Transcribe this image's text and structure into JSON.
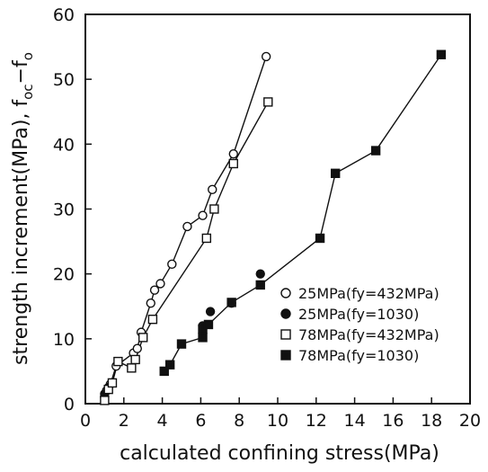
{
  "chart_data": {
    "type": "scatter",
    "title": "",
    "xlabel": "calculated confining stress(MPa)",
    "ylabel": "strength increment(MPa), f",
    "ylabel_tail_1": "oc",
    "ylabel_tail_2": "−f",
    "ylabel_tail_3": "o",
    "xlim": [
      0,
      20
    ],
    "ylim": [
      0,
      60
    ],
    "xticks": [
      "0",
      "2",
      "4",
      "6",
      "8",
      "10",
      "12",
      "14",
      "16",
      "18",
      "20"
    ],
    "yticks": [
      "0",
      "10",
      "20",
      "30",
      "40",
      "50",
      "60"
    ],
    "grid": false,
    "legend_position": "lower-right",
    "series": [
      {
        "name": "25MPa(fy=432MPa)",
        "marker": "circle-open",
        "points": [
          [
            1.0,
            1.0
          ],
          [
            1.1,
            2.0
          ],
          [
            1.3,
            3.0
          ],
          [
            1.6,
            5.8
          ],
          [
            2.5,
            7.8
          ],
          [
            2.7,
            8.5
          ],
          [
            2.9,
            11.0
          ],
          [
            3.4,
            15.5
          ],
          [
            3.6,
            17.5
          ],
          [
            3.9,
            18.5
          ],
          [
            4.5,
            21.5
          ],
          [
            5.3,
            27.3
          ],
          [
            6.1,
            29.0
          ],
          [
            6.6,
            33.0
          ],
          [
            7.7,
            38.5
          ],
          [
            9.4,
            53.5
          ]
        ]
      },
      {
        "name": "25MPa(fy=1030)",
        "marker": "circle-filled",
        "points": [
          [
            1.0,
            1.5
          ],
          [
            1.2,
            2.5
          ],
          [
            6.1,
            12.0
          ],
          [
            6.5,
            14.2
          ],
          [
            7.6,
            15.5
          ],
          [
            9.1,
            20.0
          ]
        ]
      },
      {
        "name": "78MPa(fy=432MPa)",
        "marker": "square-open",
        "points": [
          [
            1.0,
            0.5
          ],
          [
            1.2,
            2.2
          ],
          [
            1.4,
            3.2
          ],
          [
            1.7,
            6.5
          ],
          [
            2.4,
            5.5
          ],
          [
            2.6,
            6.8
          ],
          [
            3.0,
            10.2
          ],
          [
            3.5,
            13.0
          ],
          [
            6.3,
            25.5
          ],
          [
            6.7,
            30.0
          ],
          [
            7.7,
            37.0
          ],
          [
            9.5,
            46.5
          ]
        ]
      },
      {
        "name": "78MPa(fy=1030)",
        "marker": "square-filled",
        "points": [
          [
            4.1,
            5.0
          ],
          [
            4.4,
            6.0
          ],
          [
            5.0,
            9.2
          ],
          [
            6.1,
            10.2
          ],
          [
            6.1,
            11.5
          ],
          [
            6.4,
            12.2
          ],
          [
            7.6,
            15.6
          ],
          [
            9.1,
            18.3
          ],
          [
            12.2,
            25.5
          ],
          [
            13.0,
            35.5
          ],
          [
            15.1,
            39.0
          ],
          [
            18.5,
            53.8
          ]
        ]
      }
    ]
  }
}
